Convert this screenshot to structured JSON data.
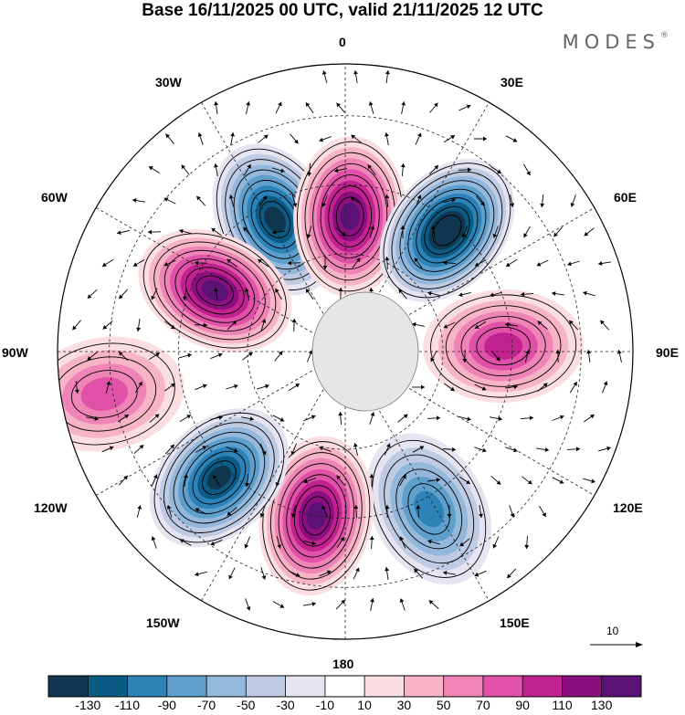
{
  "title": "Base 16/11/2025 00 UTC, valid 21/11/2025 12 UTC",
  "brand": {
    "name": "MODES",
    "mark": "®"
  },
  "longitude_labels": {
    "lon_0": "0",
    "lon_30e": "30E",
    "lon_60e": "60E",
    "lon_90e": "90E",
    "lon_120e": "120E",
    "lon_150e": "150E",
    "lon_180": "180",
    "lon_150w": "150W",
    "lon_120w": "120W",
    "lon_90w": "90W",
    "lon_60w": "60W",
    "lon_30w": "30W"
  },
  "reference_vector": {
    "label": "10"
  },
  "colorbar": {
    "colors": [
      "#10374f",
      "#0c5b85",
      "#2d82b7",
      "#5f9fcc",
      "#94b8db",
      "#bfcbe3",
      "#e6e4f1",
      "#ffffff",
      "#fbdee2",
      "#f6b4c6",
      "#ef85b6",
      "#e052a8",
      "#c2228f",
      "#8c0f80",
      "#5a1375"
    ],
    "tick_labels": [
      "-130",
      "-110",
      "-90",
      "-70",
      "-50",
      "-30",
      "-10",
      "10",
      "30",
      "50",
      "70",
      "90",
      "110",
      "130"
    ]
  },
  "anomaly_centers": [
    {
      "sign": "negative",
      "value": -135,
      "bearing_deg": -28,
      "radius_frac": 0.52
    },
    {
      "sign": "positive",
      "value": 125,
      "bearing_deg": 2,
      "radius_frac": 0.47
    },
    {
      "sign": "negative",
      "value": -140,
      "bearing_deg": 40,
      "radius_frac": 0.55
    },
    {
      "sign": "positive",
      "value": 80,
      "bearing_deg": 88,
      "radius_frac": 0.55
    },
    {
      "sign": "negative",
      "value": -95,
      "bearing_deg": 152,
      "radius_frac": 0.62
    },
    {
      "sign": "positive",
      "value": 120,
      "bearing_deg": 190,
      "radius_frac": 0.58
    },
    {
      "sign": "negative",
      "value": -125,
      "bearing_deg": -135,
      "radius_frac": 0.62
    },
    {
      "sign": "positive",
      "value": 65,
      "bearing_deg": -100,
      "radius_frac": 0.85
    },
    {
      "sign": "positive",
      "value": 125,
      "bearing_deg": -65,
      "radius_frac": 0.5
    }
  ]
}
